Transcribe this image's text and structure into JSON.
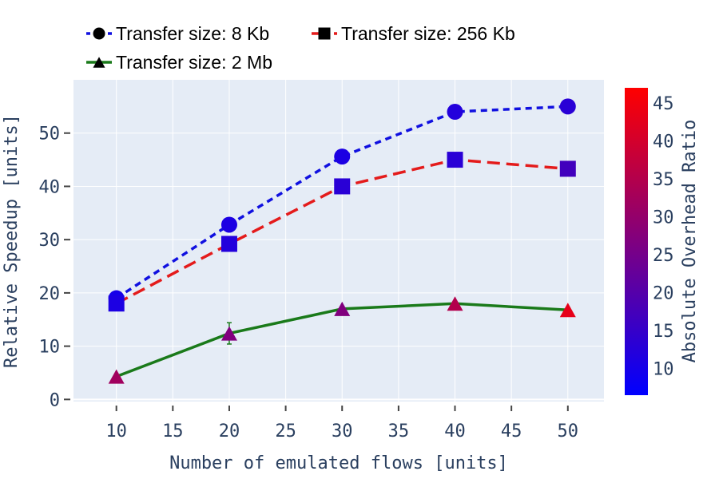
{
  "chart_data": {
    "type": "line",
    "xlabel": "Number of emulated flows [units]",
    "ylabel": "Relative Speedup [units]",
    "x": [
      10,
      20,
      30,
      40,
      50
    ],
    "xticks": [
      10,
      15,
      20,
      25,
      30,
      35,
      40,
      45,
      50
    ],
    "yticks": [
      0,
      10,
      20,
      30,
      40,
      50
    ],
    "xlim": [
      6.2,
      53.2
    ],
    "ylim": [
      -0.4,
      60
    ],
    "grid": true,
    "legend_position": "top",
    "series": [
      {
        "name": "Transfer size: 8 Kb",
        "marker": "circle",
        "line_color": "#1010e0",
        "dash": "short-dash",
        "y": [
          19,
          32.8,
          45.6,
          54,
          55
        ],
        "error": [
          0,
          0,
          0,
          0,
          0
        ],
        "overhead_ratio": [
          10,
          11,
          11,
          12,
          13
        ]
      },
      {
        "name": "Transfer size: 256 Kb",
        "marker": "square",
        "line_color": "#e41b1b",
        "dash": "long-dash",
        "y": [
          18,
          29.2,
          40,
          45,
          43.3
        ],
        "error": [
          0,
          0,
          0,
          0,
          0
        ],
        "overhead_ratio": [
          11,
          12,
          13,
          13,
          17
        ]
      },
      {
        "name": "Transfer size: 2 Mb",
        "marker": "triangle",
        "line_color": "#1a7a1a",
        "dash": "solid",
        "y": [
          4.3,
          12.4,
          17,
          18,
          16.8
        ],
        "error": [
          0,
          2,
          0,
          0,
          0
        ],
        "overhead_ratio": [
          32,
          27,
          27,
          35,
          43
        ]
      }
    ],
    "colorbar": {
      "title": "Absolute Overhead Ratio",
      "min": 6.5,
      "max": 47,
      "ticks": [
        10,
        15,
        20,
        25,
        30,
        35,
        40,
        45
      ],
      "color_low": "#0000ff",
      "color_high": "#ff0000"
    }
  }
}
